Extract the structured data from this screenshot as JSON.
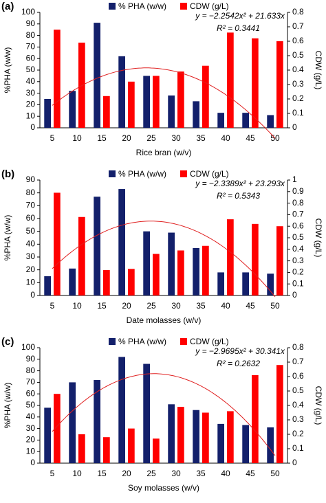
{
  "chart_data": [
    {
      "type": "bar",
      "panel": "(a)",
      "x_label": "Rice bran (w/v)",
      "y_label": "%PHA  (w/w)",
      "y2_label": "CDW (g/L)",
      "categories": [
        "5",
        "10",
        "15",
        "20",
        "25",
        "30",
        "35",
        "40",
        "45",
        "50"
      ],
      "series": [
        {
          "name": "% PHA (w/w)",
          "color": "#13206b",
          "values": [
            25,
            32,
            91,
            62,
            45,
            28,
            23,
            13,
            13,
            11
          ]
        },
        {
          "name": "CDW (g/L)",
          "color": "#ff0000",
          "axis": "y2",
          "values": [
            0.68,
            0.59,
            0.22,
            0.32,
            0.36,
            0.39,
            0.43,
            0.66,
            0.62,
            0.6
          ]
        }
      ],
      "ylim": [
        0,
        100
      ],
      "yticks": [
        0,
        10,
        20,
        30,
        40,
        50,
        60,
        70,
        80,
        90,
        100
      ],
      "y2lim": [
        0,
        0.8
      ],
      "y2ticks": [
        0,
        0.1,
        0.2,
        0.3,
        0.4,
        0.5,
        0.6,
        0.7,
        0.8
      ],
      "trendline": {
        "equation": "y = −2.2542x² + 21.633x",
        "r_squared": "R² = 0.3441",
        "a": -2.2542,
        "b": 21.633,
        "color": "#e02020"
      }
    },
    {
      "type": "bar",
      "panel": "(b)",
      "x_label": "Date molasses (w/v)",
      "y_label": "%PHA  (w/w)",
      "y2_label": "CDW (g/L)",
      "categories": [
        "5",
        "10",
        "15",
        "20",
        "25",
        "30",
        "35",
        "40",
        "45",
        "50"
      ],
      "series": [
        {
          "name": "% PHA (w/w)",
          "color": "#13206b",
          "values": [
            15,
            21,
            77,
            83,
            50,
            49,
            37,
            18,
            18,
            17
          ]
        },
        {
          "name": "CDW (g/L)",
          "color": "#ff0000",
          "axis": "y2",
          "values": [
            0.89,
            0.68,
            0.22,
            0.23,
            0.36,
            0.39,
            0.43,
            0.66,
            0.62,
            0.6
          ]
        }
      ],
      "ylim": [
        0,
        90
      ],
      "yticks": [
        0,
        10,
        20,
        30,
        40,
        50,
        60,
        70,
        80,
        90
      ],
      "y2lim": [
        0,
        1
      ],
      "y2ticks": [
        0,
        0.1,
        0.2,
        0.3,
        0.4,
        0.5,
        0.6,
        0.7,
        0.8,
        0.9,
        1
      ],
      "trendline": {
        "equation": "y = −2.3389x² + 23.293x",
        "r_squared": "R² = 0.5343",
        "a": -2.3389,
        "b": 23.293,
        "color": "#e02020"
      }
    },
    {
      "type": "bar",
      "panel": "(c)",
      "x_label": "Soy molasses (w/v)",
      "y_label": "%PHA  (w/w)",
      "y2_label": "CDW (g/L)",
      "categories": [
        "5",
        "10",
        "15",
        "20",
        "25",
        "30",
        "35",
        "40",
        "45",
        "50"
      ],
      "series": [
        {
          "name": "%  PHA (w/w)",
          "color": "#13206b",
          "values": [
            48,
            70,
            72,
            92,
            86,
            51,
            46,
            34,
            33,
            31
          ]
        },
        {
          "name": "CDW (g/L)",
          "color": "#ff0000",
          "axis": "y2",
          "values": [
            0.48,
            0.2,
            0.18,
            0.24,
            0.17,
            0.39,
            0.35,
            0.36,
            0.61,
            0.68
          ]
        }
      ],
      "ylim": [
        0,
        100
      ],
      "yticks": [
        0,
        10,
        20,
        30,
        40,
        50,
        60,
        70,
        80,
        90,
        100
      ],
      "y2lim": [
        0,
        0.8
      ],
      "y2ticks": [
        0,
        0.1,
        0.2,
        0.3,
        0.4,
        0.5,
        0.6,
        0.7,
        0.8
      ],
      "trendline": {
        "equation": "y = −2.9695x² + 30.341x",
        "r_squared": "R² = 0.2632",
        "a": -2.9695,
        "b": 30.341,
        "color": "#e02020"
      }
    }
  ]
}
